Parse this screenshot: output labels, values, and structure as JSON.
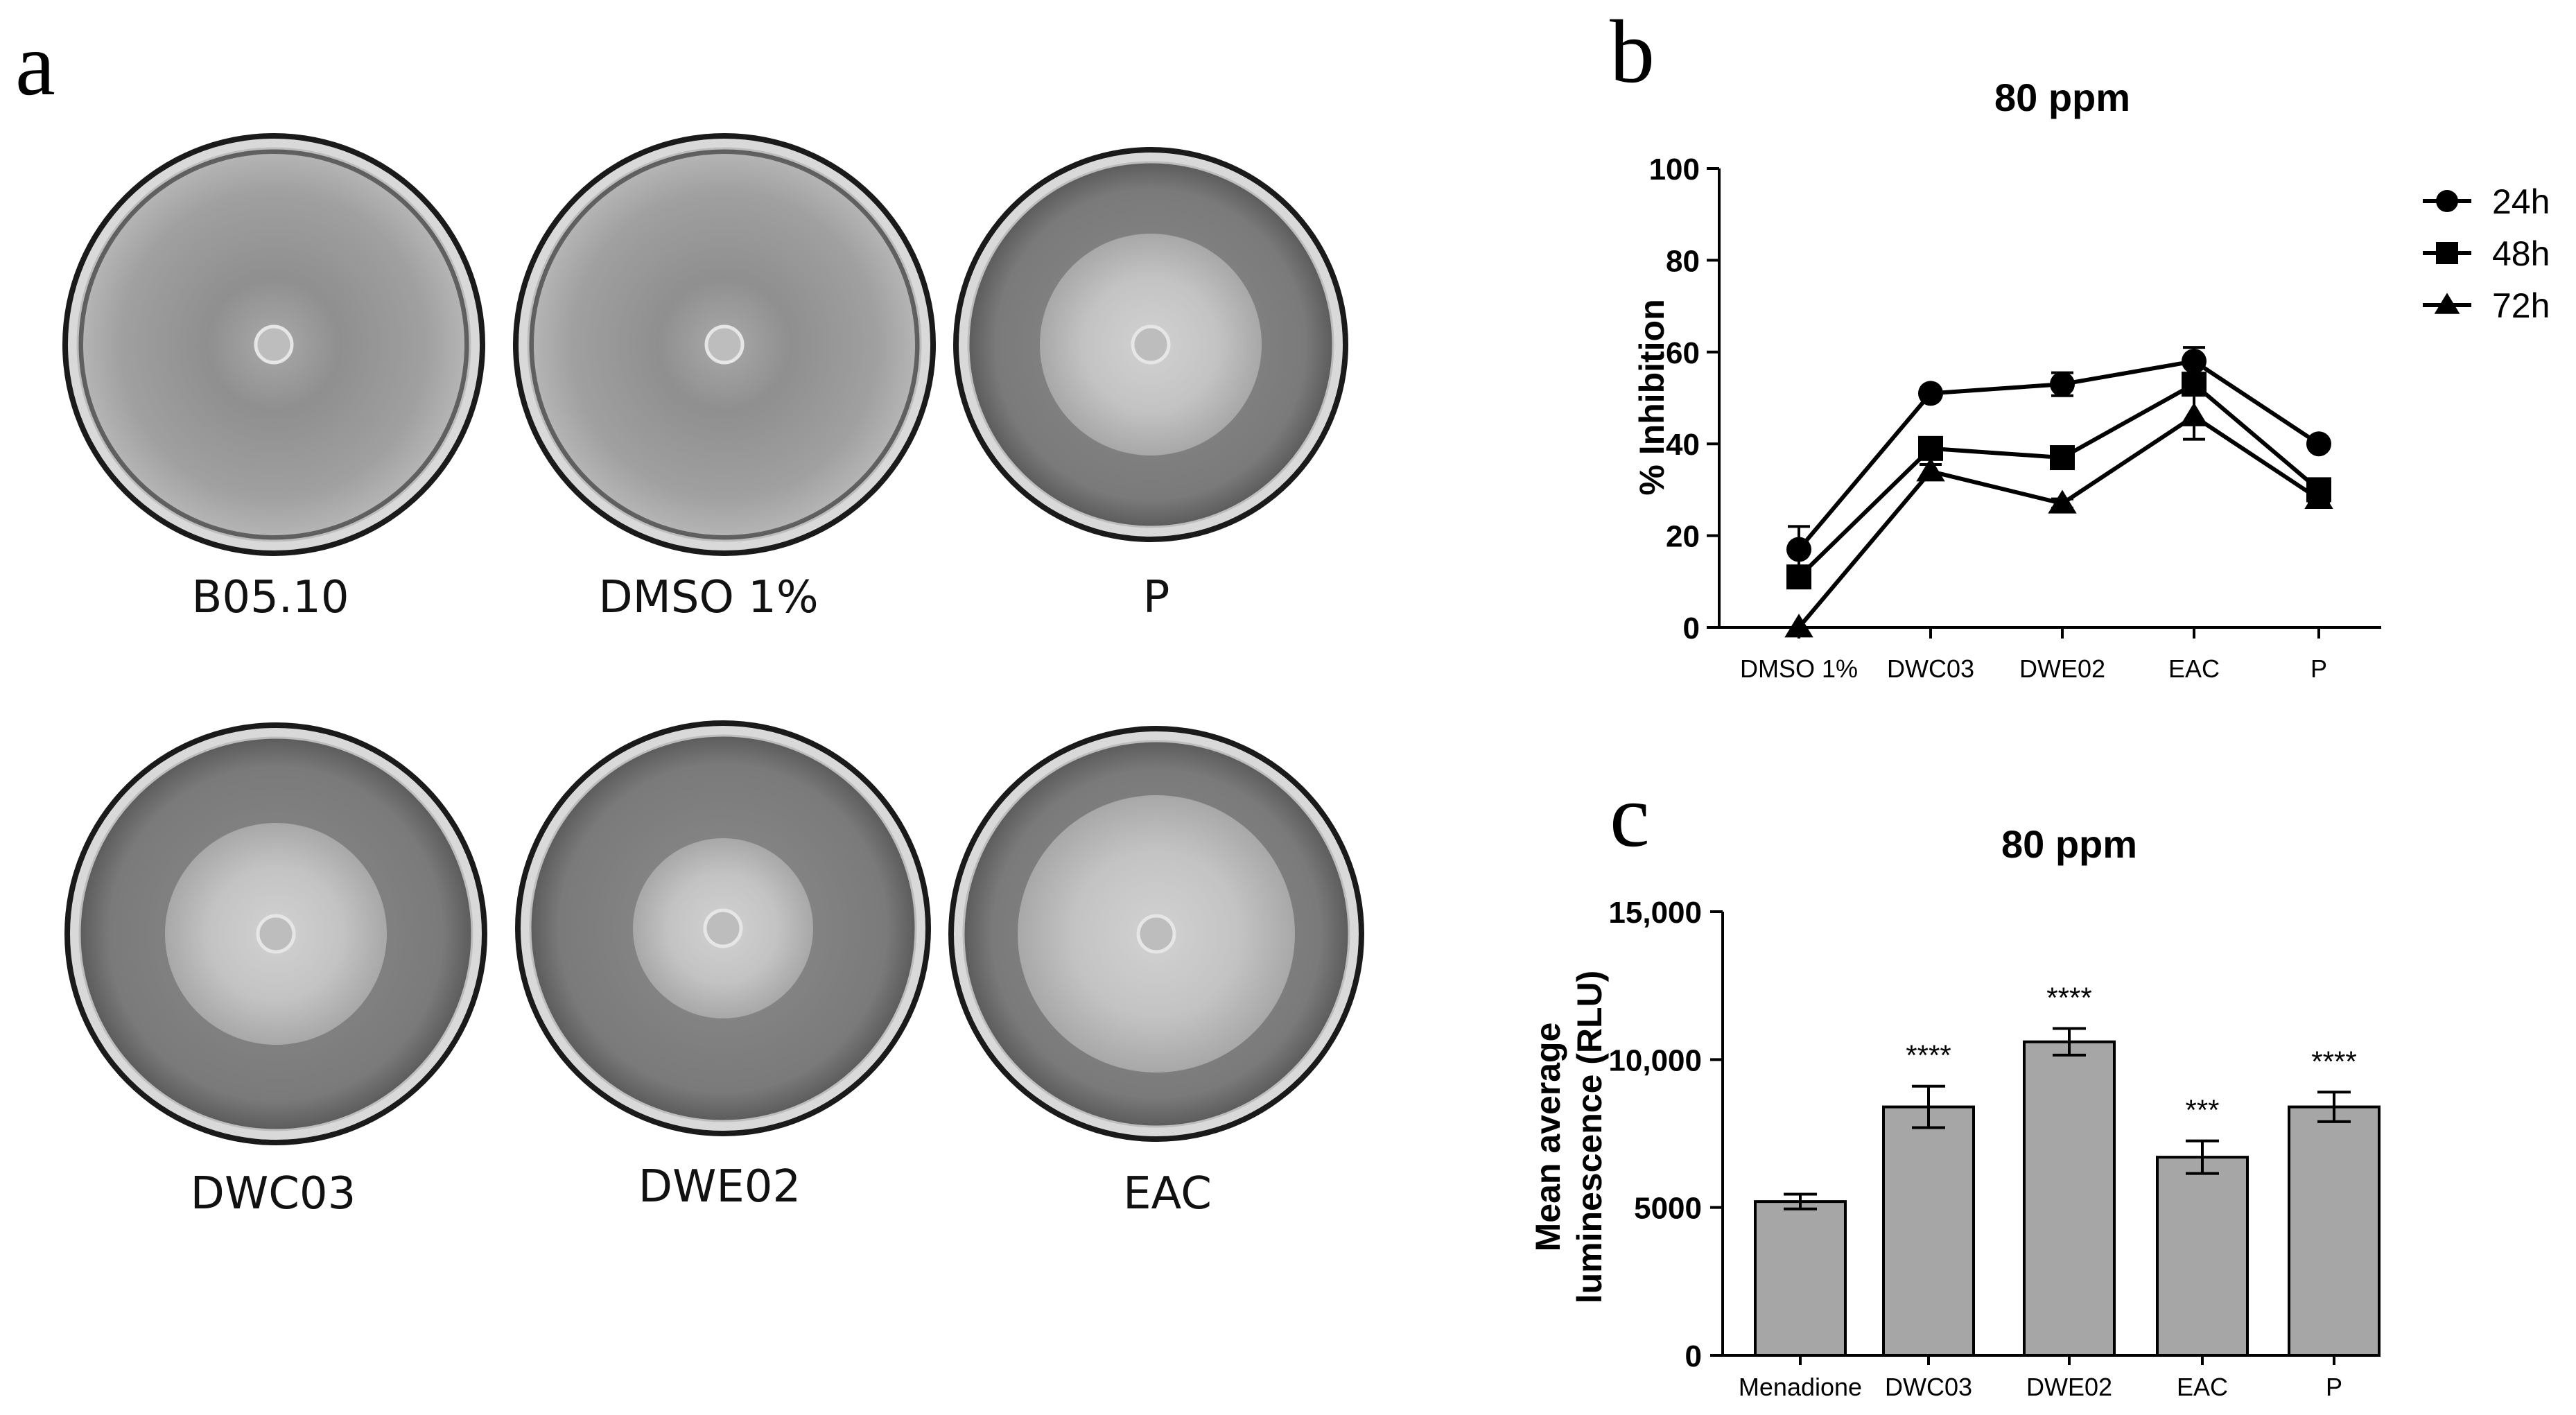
{
  "panels": {
    "a": {
      "letter": "a",
      "plates": [
        {
          "label": "B05.10",
          "colony": "full"
        },
        {
          "label": "DMSO 1%",
          "colony": "full"
        },
        {
          "label": "P",
          "colony": "medium"
        },
        {
          "label": "DWC03",
          "colony": "medium"
        },
        {
          "label": "DWE02",
          "colony": "small"
        },
        {
          "label": "EAC",
          "colony": "large"
        }
      ]
    },
    "b": {
      "letter": "b"
    },
    "c": {
      "letter": "c"
    }
  },
  "chart_data": [
    {
      "id": "b",
      "type": "line",
      "title": "80 ppm",
      "xlabel": "",
      "ylabel": "% Inhibition",
      "categories": [
        "DMSO 1%",
        "DWC03",
        "DWE02",
        "EAC",
        "P"
      ],
      "ylim": [
        0,
        100
      ],
      "yticks": [
        "0",
        "20",
        "40",
        "60",
        "80",
        "100"
      ],
      "legend_position": "right",
      "series": [
        {
          "name": "24h",
          "marker": "circle",
          "values": [
            17,
            51,
            53,
            58,
            40
          ],
          "errors": [
            5,
            0.8,
            2.5,
            3,
            1
          ]
        },
        {
          "name": "48h",
          "marker": "square",
          "values": [
            11,
            39,
            37,
            53,
            30
          ],
          "errors": [
            1,
            1.5,
            1.5,
            2,
            1
          ]
        },
        {
          "name": "72h",
          "marker": "triangle",
          "values": [
            0,
            34,
            27,
            46,
            28
          ],
          "errors": [
            0,
            1.5,
            1,
            5,
            1
          ]
        }
      ]
    },
    {
      "id": "c",
      "type": "bar",
      "title": "80 ppm",
      "xlabel": "",
      "ylabel": "Mean average luminescence (RLU)",
      "ylabel_lines": [
        "Mean average",
        "luminescence (RLU)"
      ],
      "categories": [
        "Menadione",
        "DWC03",
        "DWE02",
        "EAC",
        "P"
      ],
      "values": [
        5200,
        8400,
        10600,
        6700,
        8400
      ],
      "errors": [
        250,
        700,
        450,
        550,
        500
      ],
      "significance": [
        "",
        "****",
        "****",
        "***",
        "****"
      ],
      "ylim": [
        0,
        15000
      ],
      "yticks": [
        "0",
        "5000",
        "10,000",
        "15,000"
      ],
      "bar_color": "#a6a6a6"
    }
  ]
}
